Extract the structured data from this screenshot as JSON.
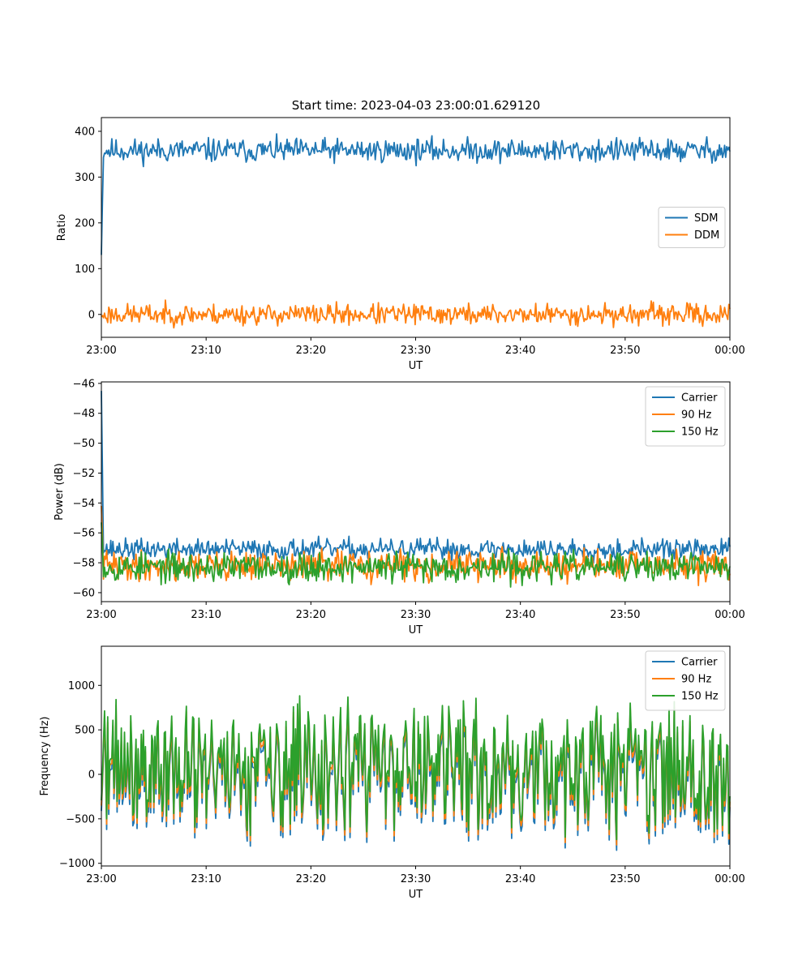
{
  "figure_title": "Start time: 2023-04-03 23:00:01.629120",
  "colors": {
    "blue": "#1f77b4",
    "orange": "#ff7f0e",
    "green": "#2ca02c"
  },
  "chart_data": [
    {
      "type": "line",
      "title": "Start time: 2023-04-03 23:00:01.629120",
      "xlabel": "UT",
      "ylabel": "Ratio",
      "x_ticks": [
        "23:00",
        "23:10",
        "23:20",
        "23:30",
        "23:40",
        "23:50",
        "00:00"
      ],
      "x_range_minutes": [
        0,
        60
      ],
      "ylim": [
        -50,
        430
      ],
      "y_ticks": [
        "400",
        "300",
        "200",
        "100",
        "0"
      ],
      "y_tick_values": [
        400,
        300,
        200,
        100,
        0
      ],
      "legend_position": "center-right",
      "grid": false,
      "series": [
        {
          "name": "SDM",
          "color": "#1f77b4",
          "start": 130,
          "mean": 358,
          "spread": 34,
          "seed": 11
        },
        {
          "name": "DDM",
          "color": "#ff7f0e",
          "start": -5,
          "mean": 0,
          "spread": 30,
          "seed": 23
        }
      ]
    },
    {
      "type": "line",
      "title": "",
      "xlabel": "UT",
      "ylabel": "Power (dB)",
      "x_ticks": [
        "23:00",
        "23:10",
        "23:20",
        "23:30",
        "23:40",
        "23:50",
        "00:00"
      ],
      "x_range_minutes": [
        0,
        60
      ],
      "ylim": [
        -60.6,
        -45.9
      ],
      "y_ticks": [
        "−46",
        "−48",
        "−50",
        "−52",
        "−54",
        "−56",
        "−58",
        "−60"
      ],
      "y_tick_values": [
        -46,
        -48,
        -50,
        -52,
        -54,
        -56,
        -58,
        -60
      ],
      "legend_position": "top-right",
      "grid": false,
      "series": [
        {
          "name": "Carrier",
          "color": "#1f77b4",
          "start": -46.5,
          "mean": -57.1,
          "spread": 0.9,
          "seed": 37
        },
        {
          "name": "90 Hz",
          "color": "#ff7f0e",
          "start": -54.2,
          "mean": -58.2,
          "spread": 1.3,
          "seed": 41
        },
        {
          "name": "150 Hz",
          "color": "#2ca02c",
          "start": -55.3,
          "mean": -58.3,
          "spread": 1.3,
          "seed": 53
        }
      ]
    },
    {
      "type": "line",
      "title": "",
      "xlabel": "UT",
      "ylabel": "Frequency (Hz)",
      "x_ticks": [
        "23:00",
        "23:10",
        "23:20",
        "23:30",
        "23:40",
        "23:50",
        "00:00"
      ],
      "x_range_minutes": [
        0,
        60
      ],
      "ylim": [
        -1030,
        1440
      ],
      "y_ticks": [
        "1000",
        "500",
        "0",
        "−500",
        "−1000"
      ],
      "y_tick_values": [
        1000,
        500,
        0,
        -500,
        -1000
      ],
      "legend_position": "top-right",
      "grid": false,
      "series": [
        {
          "name": "Carrier",
          "color": "#1f77b4",
          "mean": 0,
          "spread": 800,
          "seed": 71,
          "offset": -60
        },
        {
          "name": "90 Hz",
          "color": "#ff7f0e",
          "mean": 0,
          "spread": 800,
          "seed": 71,
          "offset": 0
        },
        {
          "name": "150 Hz",
          "color": "#2ca02c",
          "mean": 0,
          "spread": 800,
          "seed": 71,
          "offset": 60
        }
      ]
    }
  ]
}
